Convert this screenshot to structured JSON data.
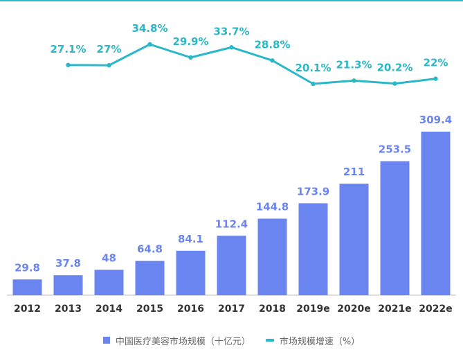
{
  "colors": {
    "bar": "#6b85f0",
    "line": "#2ab7c8",
    "axis": "#bdbdbd"
  },
  "chart_data": {
    "type": "bar",
    "categories": [
      "2012",
      "2013",
      "2014",
      "2015",
      "2016",
      "2017",
      "2018",
      "2019e",
      "2020e",
      "2021e",
      "2022e"
    ],
    "series": [
      {
        "name": "中国医疗美容市场规模（十亿元）",
        "type": "bar",
        "values": [
          29.8,
          37.8,
          48,
          64.8,
          84.1,
          112.4,
          144.8,
          173.9,
          211,
          253.5,
          309.4
        ],
        "labels": [
          "29.8",
          "37.8",
          "48",
          "64.8",
          "84.1",
          "112.4",
          "144.8",
          "173.9",
          "211",
          "253.5",
          "309.4"
        ]
      },
      {
        "name": "市场规模增速（%）",
        "type": "line",
        "values": [
          null,
          27.1,
          27,
          34.8,
          29.9,
          33.7,
          28.8,
          20.1,
          21.3,
          20.2,
          22
        ],
        "labels": [
          null,
          "27.1%",
          "27%",
          "34.8%",
          "29.9%",
          "33.7%",
          "28.8%",
          "20.1%",
          "21.3%",
          "20.2%",
          "22%"
        ]
      }
    ],
    "legend_position": "bottom",
    "grid": false
  }
}
